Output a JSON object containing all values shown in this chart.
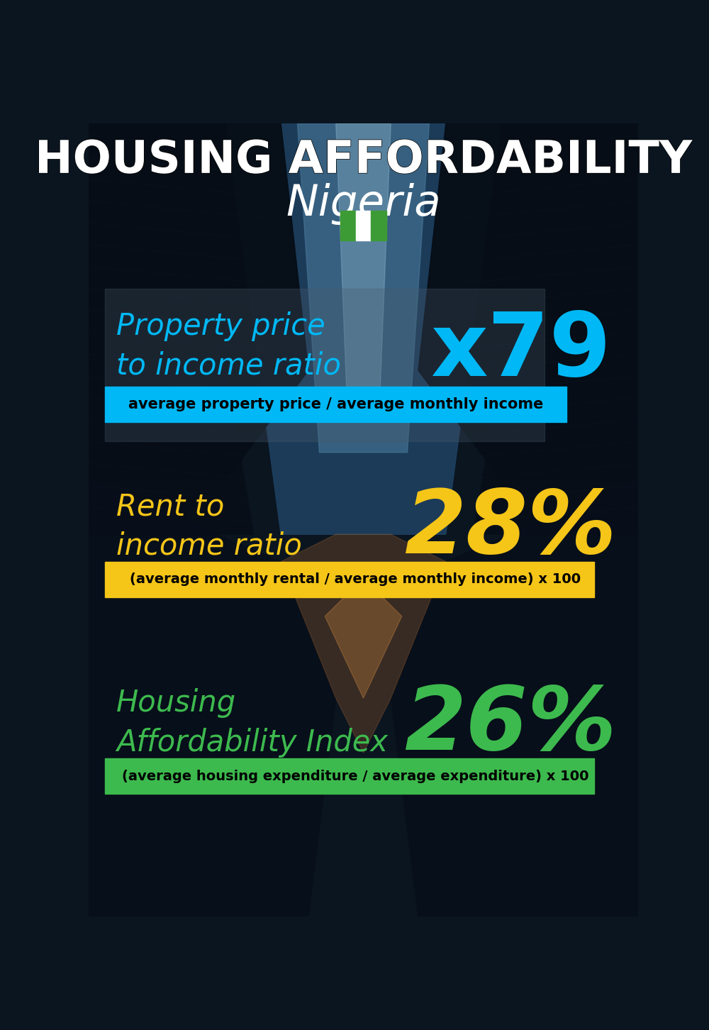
{
  "title_line1": "HOUSING AFFORDABILITY",
  "title_line2": "Nigeria",
  "flag_colors": [
    "#3d9b35",
    "#ffffff",
    "#3d9b35"
  ],
  "section1_label": "Property price\nto income ratio",
  "section1_value": "x79",
  "section1_label_color": "#00b8f5",
  "section1_value_color": "#00b8f5",
  "section1_band_color": "#00b8f5",
  "section1_band_text": "average property price / average monthly income",
  "section2_label": "Rent to\nincome ratio",
  "section2_value": "28%",
  "section2_label_color": "#f5c518",
  "section2_value_color": "#f5c518",
  "section2_band_color": "#f5c518",
  "section2_band_text": "(average monthly rental / average monthly income) x 100",
  "section3_label": "Housing\nAffordability Index",
  "section3_value": "26%",
  "section3_label_color": "#3dba4e",
  "section3_value_color": "#3dba4e",
  "section3_band_color": "#3dba4e",
  "section3_band_text": "(average housing expenditure / average expenditure) x 100",
  "bg_color": "#0a1520",
  "title_color": "#ffffff",
  "band_text_color": "#000000",
  "building_dark": "#080e18",
  "building_mid": "#0d1a28",
  "sky_color": "#1a3a5c",
  "sky_bright": "#3a6a9a"
}
